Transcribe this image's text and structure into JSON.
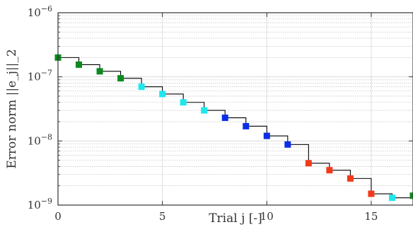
{
  "chart_data": {
    "type": "line",
    "title": "",
    "xlabel": "Trial j [-]",
    "ylabel": "Error norm ||e_j||_2",
    "xlim": [
      0,
      17
    ],
    "ylim": [
      1e-09,
      1e-06
    ],
    "yscale": "log",
    "grid": true,
    "x_ticks": [
      0,
      5,
      10,
      15
    ],
    "x_tick_labels": [
      "0",
      "5",
      "10",
      "15"
    ],
    "y_ticks": [
      1e-09,
      1e-08,
      1e-07,
      1e-06
    ],
    "y_tick_labels": [
      {
        "base": "10",
        "exp": "−9"
      },
      {
        "base": "10",
        "exp": "−8"
      },
      {
        "base": "10",
        "exp": "−7"
      },
      {
        "base": "10",
        "exp": "−6"
      }
    ],
    "step_line_color": "#000000",
    "points": [
      {
        "x": 0,
        "y": 2e-07,
        "color": "#0a8a1f"
      },
      {
        "x": 1,
        "y": 1.55e-07,
        "color": "#0a8a1f"
      },
      {
        "x": 2,
        "y": 1.22e-07,
        "color": "#0a8a1f"
      },
      {
        "x": 3,
        "y": 9.5e-08,
        "color": "#0a8a1f"
      },
      {
        "x": 4,
        "y": 7e-08,
        "color": "#1ee8ee"
      },
      {
        "x": 5,
        "y": 5.4e-08,
        "color": "#1ee8ee"
      },
      {
        "x": 6,
        "y": 4e-08,
        "color": "#1ee8ee"
      },
      {
        "x": 7,
        "y": 3e-08,
        "color": "#1ee8ee"
      },
      {
        "x": 8,
        "y": 2.3e-08,
        "color": "#0a2ee8"
      },
      {
        "x": 9,
        "y": 1.7e-08,
        "color": "#0a2ee8"
      },
      {
        "x": 10,
        "y": 1.2e-08,
        "color": "#0a2ee8"
      },
      {
        "x": 11,
        "y": 8.8e-09,
        "color": "#0a2ee8"
      },
      {
        "x": 12,
        "y": 4.5e-09,
        "color": "#f23a1a"
      },
      {
        "x": 13,
        "y": 3.5e-09,
        "color": "#f23a1a"
      },
      {
        "x": 14,
        "y": 2.6e-09,
        "color": "#f23a1a"
      },
      {
        "x": 15,
        "y": 1.5e-09,
        "color": "#f23a1a"
      },
      {
        "x": 16,
        "y": 1.3e-09,
        "color": "#1ee8ee"
      },
      {
        "x": 17,
        "y": 1.4e-09,
        "color": "#0a8a1f"
      }
    ]
  }
}
